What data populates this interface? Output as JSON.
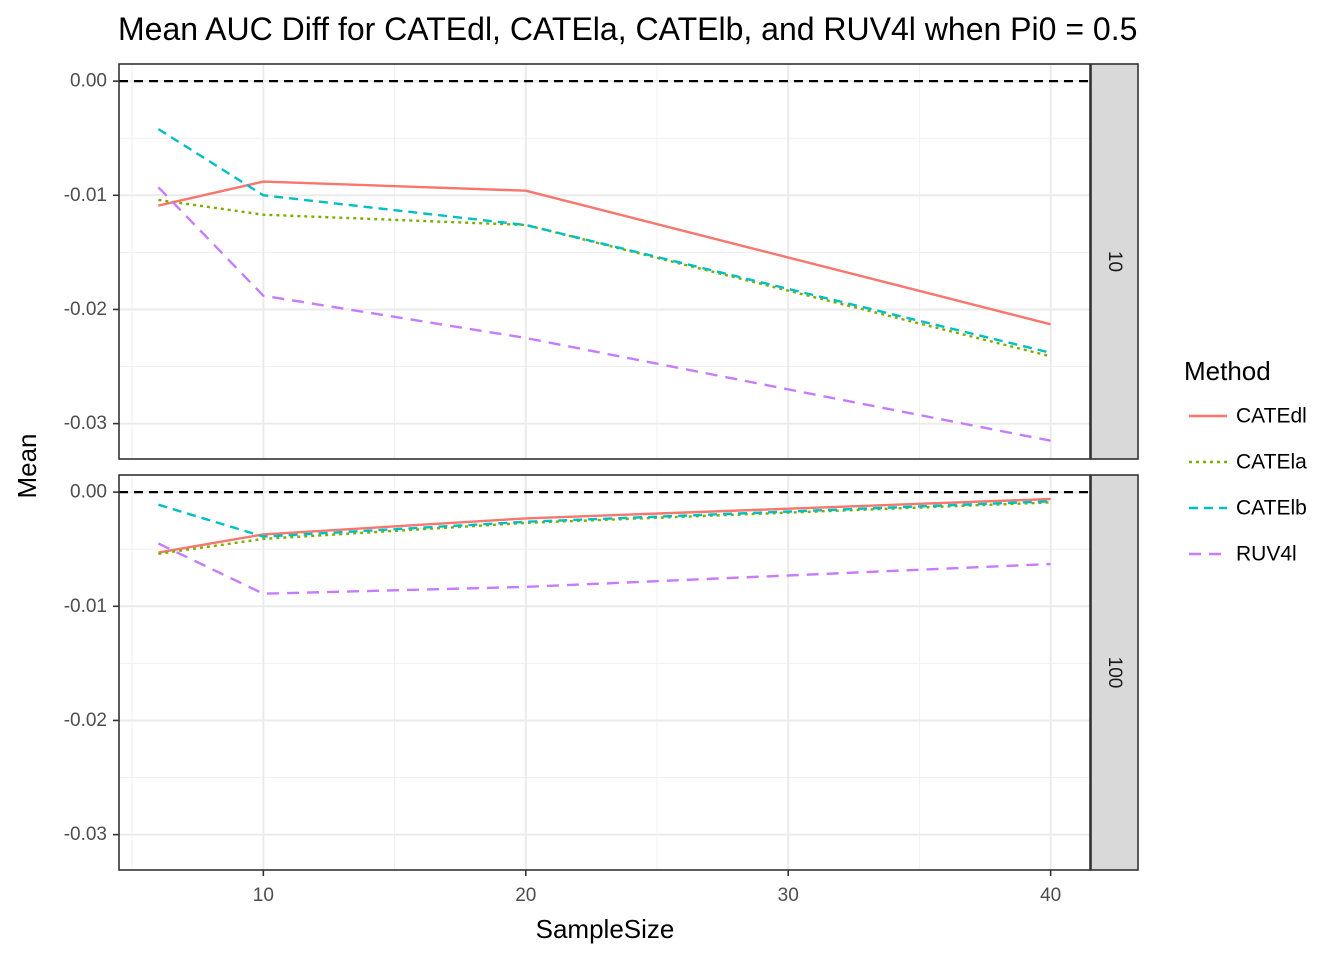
{
  "chart_data": {
    "type": "line",
    "title": "Mean AUC Diff for CATEdl, CATEla, CATElb, and RUV4l when Pi0 = 0.5",
    "xlabel": "SampleSize",
    "ylabel": "Mean",
    "xlim": [
      4.5,
      41.5
    ],
    "ylim": [
      -0.0331,
      0.0015
    ],
    "x_ticks": [
      {
        "value": 10,
        "label": "10"
      },
      {
        "value": 20,
        "label": "20"
      },
      {
        "value": 30,
        "label": "30"
      },
      {
        "value": 40,
        "label": "40"
      }
    ],
    "y_ticks": [
      {
        "value": 0.0,
        "label": "0.00"
      },
      {
        "value": -0.01,
        "label": "-0.01"
      },
      {
        "value": -0.02,
        "label": "-0.02"
      },
      {
        "value": -0.03,
        "label": "-0.03"
      }
    ],
    "grid": true,
    "reference_line": {
      "y": 0.0,
      "style": "dashed",
      "color": "#000000"
    },
    "legend": {
      "title": "Method",
      "position": "right"
    },
    "series_styles": [
      {
        "name": "CATEdl",
        "color": "#F8766D",
        "dash": "solid"
      },
      {
        "name": "CATEla",
        "color": "#7CAE00",
        "dash": "dotted"
      },
      {
        "name": "CATElb",
        "color": "#00BFC4",
        "dash": "dashed"
      },
      {
        "name": "RUV4l",
        "color": "#C77CFF",
        "dash": "longdash"
      }
    ],
    "panels": [
      {
        "strip_label": "10",
        "x": [
          6,
          10,
          20,
          40
        ],
        "series": [
          {
            "name": "CATEdl",
            "values": [
              -0.0109,
              -0.0088,
              -0.0096,
              -0.0213
            ]
          },
          {
            "name": "CATEla",
            "values": [
              -0.0104,
              -0.0117,
              -0.0126,
              -0.0241
            ]
          },
          {
            "name": "CATElb",
            "values": [
              -0.0042,
              -0.01,
              -0.0126,
              -0.0238
            ]
          },
          {
            "name": "RUV4l",
            "values": [
              -0.0093,
              -0.0188,
              -0.0225,
              -0.0315
            ]
          }
        ]
      },
      {
        "strip_label": "100",
        "x": [
          6,
          10,
          20,
          40
        ],
        "series": [
          {
            "name": "CATEdl",
            "values": [
              -0.0053,
              -0.0037,
              -0.0023,
              -0.0006
            ]
          },
          {
            "name": "CATEla",
            "values": [
              -0.0054,
              -0.0041,
              -0.0027,
              -0.0009
            ]
          },
          {
            "name": "CATElb",
            "values": [
              -0.0011,
              -0.0039,
              -0.0026,
              -0.0008
            ]
          },
          {
            "name": "RUV4l",
            "values": [
              -0.0045,
              -0.0089,
              -0.0083,
              -0.0063
            ]
          }
        ]
      }
    ]
  }
}
